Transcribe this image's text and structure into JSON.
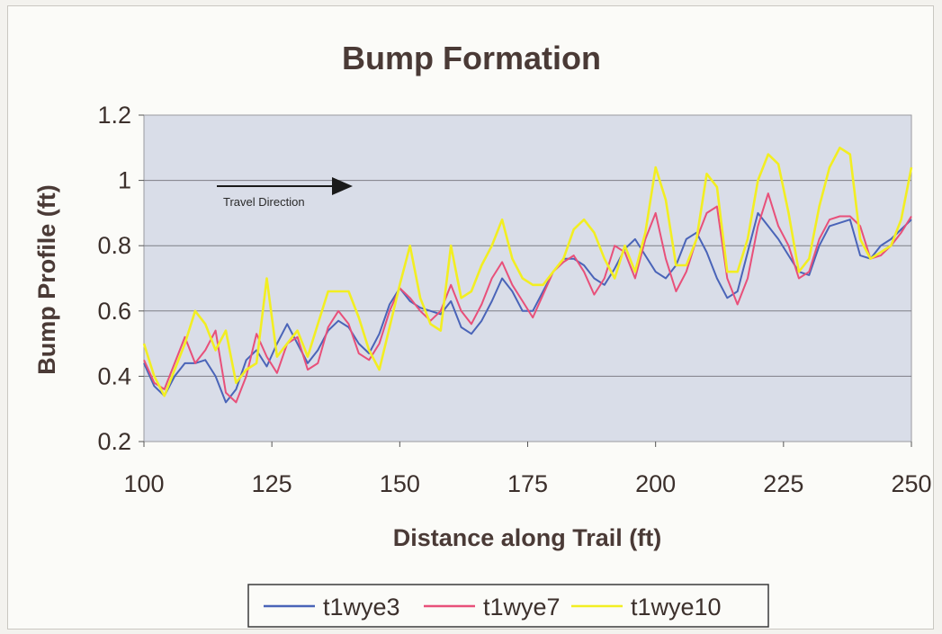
{
  "chart_data": {
    "type": "line",
    "title": "Bump Formation",
    "xlabel": "Distance along Trail (ft)",
    "ylabel": "Bump Profile (ft)",
    "xlim": [
      100,
      250
    ],
    "ylim": [
      0.2,
      1.2
    ],
    "x_ticks": [
      "100",
      "125",
      "150",
      "175",
      "200",
      "225",
      "250"
    ],
    "y_ticks": [
      "0.2",
      "0.4",
      "0.6",
      "0.8",
      "1",
      "1.2"
    ],
    "grid": "horizontal",
    "legend_position": "bottom",
    "annotation": "Travel Direction",
    "colors": {
      "plot_background": "#d9dde8",
      "gridline": "#7e7e86",
      "t1wye3": "#4a64b8",
      "t1wye7": "#e8507a",
      "t1wye10": "#f2ee22"
    },
    "series": [
      {
        "name": "t1wye3",
        "x": [
          100,
          102,
          104,
          106,
          108,
          110,
          112,
          114,
          116,
          118,
          120,
          122,
          124,
          126,
          128,
          130,
          132,
          134,
          136,
          138,
          140,
          142,
          144,
          146,
          148,
          150,
          152,
          154,
          156,
          158,
          160,
          162,
          164,
          166,
          168,
          170,
          172,
          174,
          176,
          178,
          180,
          182,
          184,
          186,
          188,
          190,
          192,
          194,
          196,
          198,
          200,
          202,
          204,
          206,
          208,
          210,
          212,
          214,
          216,
          218,
          220,
          222,
          224,
          226,
          228,
          230,
          232,
          234,
          236,
          238,
          240,
          242,
          244,
          246,
          248,
          250
        ],
        "values": [
          0.44,
          0.37,
          0.34,
          0.4,
          0.44,
          0.44,
          0.45,
          0.4,
          0.32,
          0.36,
          0.45,
          0.48,
          0.43,
          0.5,
          0.56,
          0.5,
          0.44,
          0.48,
          0.54,
          0.57,
          0.55,
          0.5,
          0.47,
          0.53,
          0.62,
          0.67,
          0.63,
          0.61,
          0.6,
          0.59,
          0.63,
          0.55,
          0.53,
          0.57,
          0.63,
          0.7,
          0.66,
          0.6,
          0.6,
          0.66,
          0.72,
          0.76,
          0.76,
          0.74,
          0.7,
          0.68,
          0.73,
          0.79,
          0.82,
          0.77,
          0.72,
          0.7,
          0.74,
          0.82,
          0.84,
          0.78,
          0.7,
          0.64,
          0.66,
          0.78,
          0.9,
          0.86,
          0.82,
          0.77,
          0.72,
          0.71,
          0.8,
          0.86,
          0.87,
          0.88,
          0.77,
          0.76,
          0.8,
          0.82,
          0.85,
          0.88
        ]
      },
      {
        "name": "t1wye7",
        "x": [
          100,
          102,
          104,
          106,
          108,
          110,
          112,
          114,
          116,
          118,
          120,
          122,
          124,
          126,
          128,
          130,
          132,
          134,
          136,
          138,
          140,
          142,
          144,
          146,
          148,
          150,
          152,
          154,
          156,
          158,
          160,
          162,
          164,
          166,
          168,
          170,
          172,
          174,
          176,
          178,
          180,
          182,
          184,
          186,
          188,
          190,
          192,
          194,
          196,
          198,
          200,
          202,
          204,
          206,
          208,
          210,
          212,
          214,
          216,
          218,
          220,
          222,
          224,
          226,
          228,
          230,
          232,
          234,
          236,
          238,
          240,
          242,
          244,
          246,
          248,
          250
        ],
        "values": [
          0.45,
          0.38,
          0.36,
          0.44,
          0.52,
          0.44,
          0.48,
          0.54,
          0.35,
          0.32,
          0.4,
          0.53,
          0.46,
          0.41,
          0.5,
          0.52,
          0.42,
          0.44,
          0.55,
          0.6,
          0.56,
          0.47,
          0.45,
          0.5,
          0.6,
          0.67,
          0.64,
          0.6,
          0.57,
          0.6,
          0.68,
          0.6,
          0.56,
          0.62,
          0.7,
          0.75,
          0.68,
          0.63,
          0.58,
          0.65,
          0.72,
          0.75,
          0.77,
          0.72,
          0.65,
          0.7,
          0.8,
          0.78,
          0.7,
          0.82,
          0.9,
          0.76,
          0.66,
          0.72,
          0.82,
          0.9,
          0.92,
          0.7,
          0.62,
          0.7,
          0.86,
          0.96,
          0.86,
          0.8,
          0.7,
          0.72,
          0.82,
          0.88,
          0.89,
          0.89,
          0.86,
          0.76,
          0.77,
          0.8,
          0.84,
          0.89
        ]
      },
      {
        "name": "t1wye10",
        "x": [
          100,
          102,
          104,
          106,
          108,
          110,
          112,
          114,
          116,
          118,
          120,
          122,
          124,
          126,
          128,
          130,
          132,
          134,
          136,
          138,
          140,
          142,
          144,
          146,
          148,
          150,
          152,
          154,
          156,
          158,
          160,
          162,
          164,
          166,
          168,
          170,
          172,
          174,
          176,
          178,
          180,
          182,
          184,
          186,
          188,
          190,
          192,
          194,
          196,
          198,
          200,
          202,
          204,
          206,
          208,
          210,
          212,
          214,
          216,
          218,
          220,
          222,
          224,
          226,
          228,
          230,
          232,
          234,
          236,
          238,
          240,
          242,
          244,
          246,
          248,
          250
        ],
        "values": [
          0.5,
          0.4,
          0.34,
          0.42,
          0.5,
          0.6,
          0.56,
          0.48,
          0.54,
          0.38,
          0.42,
          0.44,
          0.7,
          0.46,
          0.5,
          0.54,
          0.46,
          0.56,
          0.66,
          0.66,
          0.66,
          0.58,
          0.48,
          0.42,
          0.55,
          0.68,
          0.8,
          0.64,
          0.56,
          0.54,
          0.8,
          0.64,
          0.66,
          0.74,
          0.8,
          0.88,
          0.76,
          0.7,
          0.68,
          0.68,
          0.72,
          0.76,
          0.85,
          0.88,
          0.84,
          0.76,
          0.7,
          0.8,
          0.72,
          0.84,
          1.04,
          0.94,
          0.74,
          0.74,
          0.82,
          1.02,
          0.98,
          0.72,
          0.72,
          0.82,
          1.0,
          1.08,
          1.05,
          0.9,
          0.72,
          0.76,
          0.92,
          1.04,
          1.1,
          1.08,
          0.82,
          0.76,
          0.78,
          0.8,
          0.88,
          1.04
        ]
      }
    ]
  }
}
